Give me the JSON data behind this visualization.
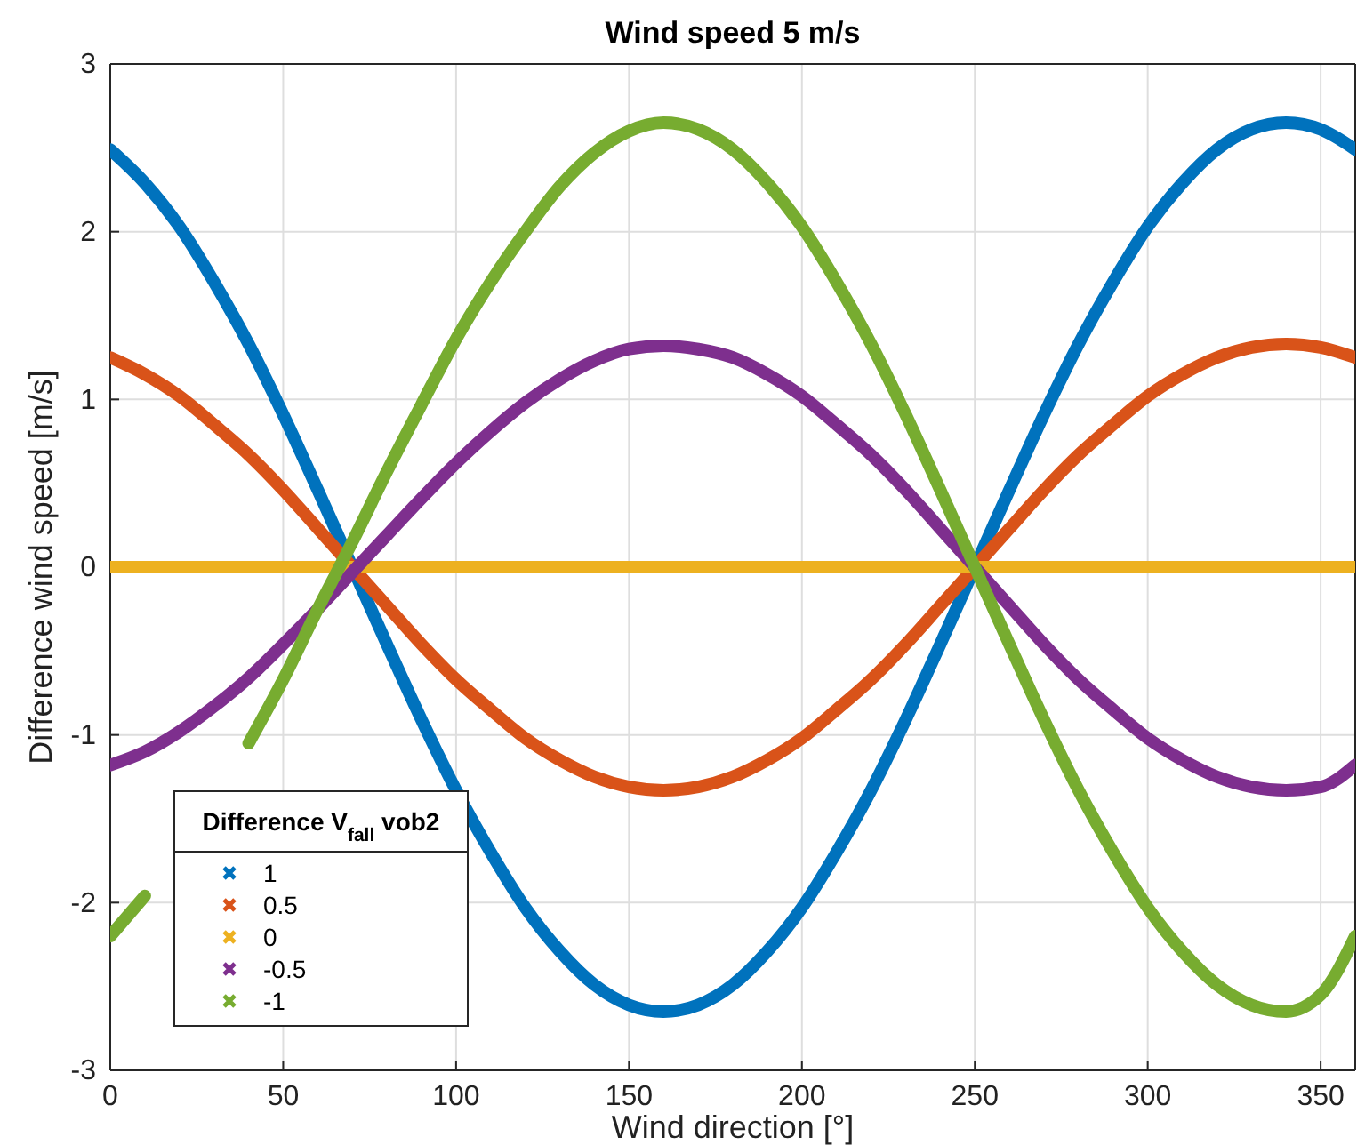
{
  "chart_data": {
    "type": "line",
    "title": "Wind speed 5 m/s",
    "xlabel": "Wind direction [°]",
    "ylabel": "Difference wind speed [m/s]",
    "legend_title": "Difference V$_{fall}$ vob2",
    "x": [
      0,
      10,
      20,
      30,
      40,
      50,
      60,
      70,
      80,
      90,
      100,
      110,
      120,
      130,
      140,
      150,
      160,
      170,
      180,
      190,
      200,
      210,
      220,
      230,
      240,
      250,
      260,
      270,
      280,
      290,
      300,
      310,
      320,
      330,
      340,
      350,
      360
    ],
    "series": [
      {
        "name": "1",
        "color": "#0072bd",
        "values": [
          2.49,
          2.29,
          2.03,
          1.7,
          1.33,
          0.91,
          0.46,
          0,
          -0.46,
          -0.91,
          -1.33,
          -1.7,
          -2.03,
          -2.29,
          -2.49,
          -2.61,
          -2.65,
          -2.61,
          -2.49,
          -2.29,
          -2.03,
          -1.7,
          -1.33,
          -0.91,
          -0.46,
          0,
          0.46,
          0.91,
          1.33,
          1.7,
          2.03,
          2.29,
          2.49,
          2.61,
          2.65,
          2.61,
          2.49
        ]
      },
      {
        "name": "0.5",
        "color": "#d95319",
        "values": [
          1.25,
          1.15,
          1.02,
          0.85,
          0.67,
          0.46,
          0.23,
          0,
          -0.23,
          -0.46,
          -0.67,
          -0.85,
          -1.02,
          -1.15,
          -1.25,
          -1.31,
          -1.33,
          -1.31,
          -1.25,
          -1.15,
          -1.02,
          -0.85,
          -0.67,
          -0.46,
          -0.23,
          0,
          0.23,
          0.46,
          0.67,
          0.85,
          1.02,
          1.15,
          1.25,
          1.31,
          1.33,
          1.31,
          1.25
        ]
      },
      {
        "name": "0",
        "color": "#edb120",
        "values": [
          0,
          0,
          0,
          0,
          0,
          0,
          0,
          0,
          0,
          0,
          0,
          0,
          0,
          0,
          0,
          0,
          0,
          0,
          0,
          0,
          0,
          0,
          0,
          0,
          0,
          0,
          0,
          0,
          0,
          0,
          0,
          0,
          0,
          0,
          0,
          0,
          0
        ]
      },
      {
        "name": "-0.5",
        "color": "#7e2f8e",
        "values": [
          -1.18,
          -1.1,
          -0.98,
          -0.83,
          -0.66,
          -0.46,
          -0.25,
          -0.03,
          0.19,
          0.41,
          0.62,
          0.81,
          0.98,
          1.12,
          1.23,
          1.3,
          1.32,
          1.3,
          1.25,
          1.15,
          1.02,
          0.85,
          0.67,
          0.46,
          0.23,
          0,
          -0.23,
          -0.46,
          -0.67,
          -0.85,
          -1.02,
          -1.15,
          -1.25,
          -1.31,
          -1.33,
          -1.31,
          -1.18
        ]
      },
      {
        "name": "-1",
        "color": "#77ac30",
        "values": [
          -2.2,
          -1.96,
          null,
          null,
          -1.05,
          -0.67,
          -0.25,
          0.15,
          0.57,
          0.97,
          1.36,
          1.7,
          2.0,
          2.27,
          2.47,
          2.6,
          2.65,
          2.61,
          2.49,
          2.29,
          2.03,
          1.7,
          1.33,
          0.91,
          0.46,
          0,
          -0.46,
          -0.91,
          -1.33,
          -1.7,
          -2.03,
          -2.29,
          -2.49,
          -2.61,
          -2.65,
          -2.55,
          -2.2
        ]
      }
    ],
    "xlim": [
      0,
      360
    ],
    "xticks": [
      0,
      50,
      100,
      150,
      200,
      250,
      300,
      350
    ],
    "ylim": [
      -3,
      3
    ],
    "yticks": [
      -3,
      -2,
      -1,
      0,
      1,
      2,
      3
    ],
    "grid": true,
    "legend": "bottom left",
    "line_style": "solid"
  }
}
